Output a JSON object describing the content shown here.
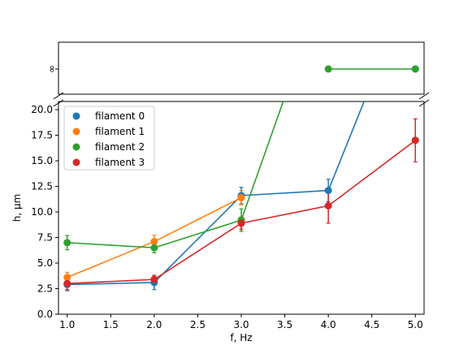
{
  "chart_data": {
    "type": "line",
    "xlabel": "f, Hz",
    "ylabel": "h, μm",
    "x_ticks": [
      "1.0",
      "1.5",
      "2.0",
      "2.5",
      "3.0",
      "3.5",
      "4.0",
      "4.5",
      "5.0"
    ],
    "y_ticks": [
      "0.0",
      "2.5",
      "5.0",
      "7.5",
      "10.0",
      "12.5",
      "15.0",
      "17.5",
      "20.0"
    ],
    "upper_tick": "∞",
    "xlim": [
      0.9,
      5.1
    ],
    "ylim": [
      0,
      20.8
    ],
    "broken_y_axis": true,
    "legend_position": "upper-left",
    "series": [
      {
        "name": "filament 0",
        "color": "#1f77b4",
        "x": [
          1.0,
          2.0,
          3.0,
          4.0,
          5.0
        ],
        "y": [
          2.9,
          3.1,
          11.6,
          12.1,
          "inf"
        ],
        "yerr": [
          0.6,
          0.7,
          0.8,
          1.1,
          0
        ]
      },
      {
        "name": "filament 1",
        "color": "#ff7f0e",
        "x": [
          1.0,
          2.0,
          3.0
        ],
        "y": [
          3.6,
          7.1,
          11.4
        ],
        "yerr": [
          0.5,
          0.6,
          0.7
        ]
      },
      {
        "name": "filament 2",
        "color": "#2ca02c",
        "x": [
          1.0,
          2.0,
          3.0,
          4.0,
          5.0
        ],
        "y": [
          7.0,
          6.5,
          9.2,
          "inf",
          "inf"
        ],
        "yerr": [
          0.7,
          0.5,
          1.1,
          0,
          0
        ]
      },
      {
        "name": "filament 3",
        "color": "#d62728",
        "x": [
          1.0,
          2.0,
          3.0,
          4.0,
          5.0
        ],
        "y": [
          3.0,
          3.4,
          8.9,
          10.6,
          17.0
        ],
        "yerr": [
          0.6,
          0.4,
          0.6,
          1.7,
          2.1
        ]
      }
    ]
  }
}
